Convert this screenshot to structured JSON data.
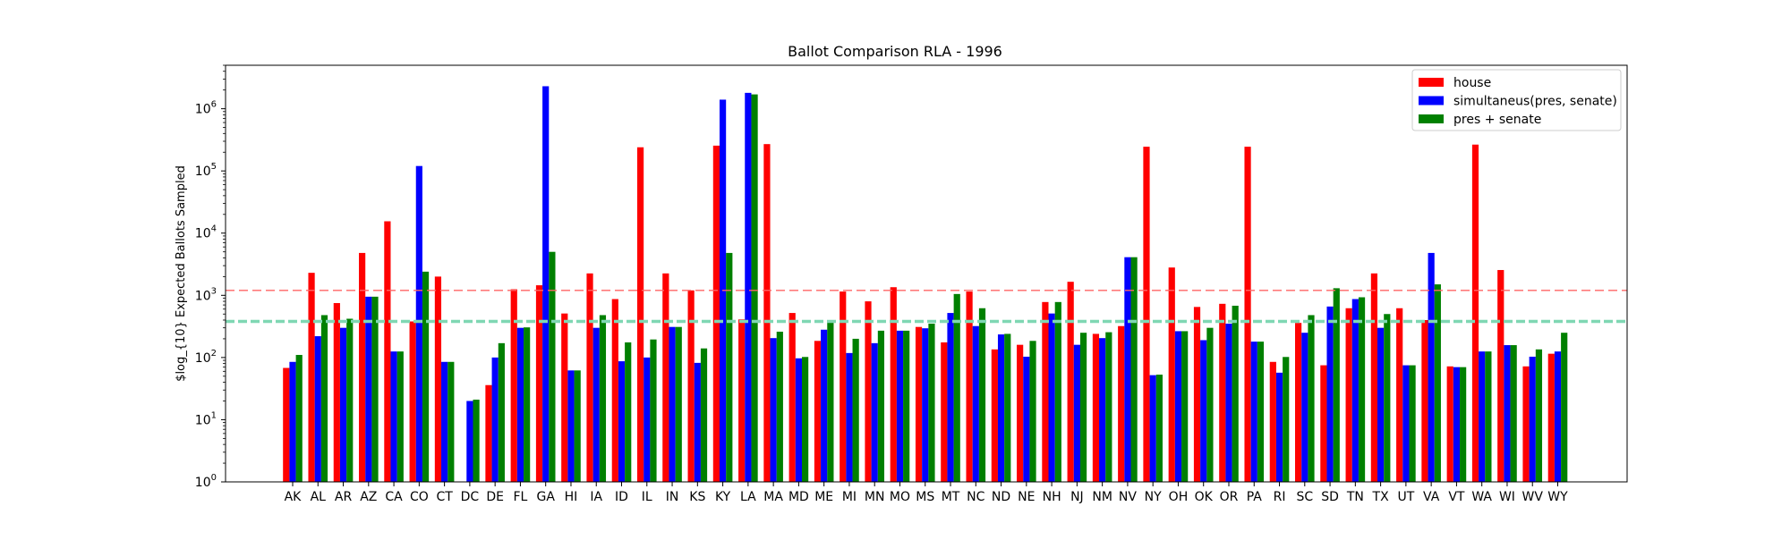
{
  "chart_data": {
    "type": "bar",
    "title": "Ballot Comparison RLA - 1996",
    "xlabel": "",
    "ylabel": "$log_{10} Expected Ballots Sampled",
    "y_scale": "log",
    "ylim": [
      1,
      5000000
    ],
    "y_ticks": [
      {
        "value": 1,
        "base": "10",
        "exp": "0"
      },
      {
        "value": 10,
        "base": "10",
        "exp": "1"
      },
      {
        "value": 100,
        "base": "10",
        "exp": "2"
      },
      {
        "value": 1000,
        "base": "10",
        "exp": "3"
      },
      {
        "value": 10000,
        "base": "10",
        "exp": "4"
      },
      {
        "value": 100000,
        "base": "10",
        "exp": "5"
      },
      {
        "value": 1000000,
        "base": "10",
        "exp": "6"
      }
    ],
    "legend_position": "top-right",
    "grid": false,
    "categories": [
      "AK",
      "AL",
      "AR",
      "AZ",
      "CA",
      "CO",
      "CT",
      "DC",
      "DE",
      "FL",
      "GA",
      "HI",
      "IA",
      "ID",
      "IL",
      "IN",
      "KS",
      "KY",
      "LA",
      "MA",
      "MD",
      "ME",
      "MI",
      "MN",
      "MO",
      "MS",
      "MT",
      "NC",
      "ND",
      "NE",
      "NH",
      "NJ",
      "NM",
      "NV",
      "NY",
      "OH",
      "OK",
      "OR",
      "PA",
      "RI",
      "SC",
      "SD",
      "TN",
      "TX",
      "UT",
      "VA",
      "VT",
      "WA",
      "WI",
      "WV",
      "WY"
    ],
    "series": [
      {
        "name": "house",
        "color": "#ff0000",
        "values": [
          68,
          2300,
          750,
          4800,
          15500,
          380,
          2000,
          null,
          36,
          1250,
          1450,
          510,
          2250,
          870,
          240000,
          2250,
          1200,
          255000,
          410,
          270000,
          520,
          185,
          1150,
          800,
          1350,
          310,
          175,
          1150,
          135,
          160,
          780,
          1650,
          240,
          320,
          245000,
          2800,
          650,
          730,
          245000,
          85,
          360,
          75,
          620,
          2250,
          620,
          400,
          72,
          265000,
          2550,
          72,
          115
        ]
      },
      {
        "name": "simultaneus(pres, senate)",
        "color": "#0000ff",
        "values": [
          85,
          220,
          300,
          950,
          125,
          120000,
          85,
          20,
          100,
          300,
          2300000,
          62,
          300,
          87,
          100,
          310,
          82,
          1400000,
          1800000,
          205,
          97,
          280,
          118,
          170,
          270,
          295,
          520,
          320,
          235,
          103,
          510,
          160,
          205,
          4100,
          52,
          265,
          190,
          350,
          180,
          57,
          250,
          660,
          870,
          300,
          75,
          4800,
          70,
          125,
          158,
          103,
          125
        ]
      },
      {
        "name": "pres + senate",
        "color": "#008000",
        "values": [
          110,
          480,
          420,
          950,
          125,
          2400,
          85,
          21,
          170,
          305,
          5000,
          62,
          480,
          175,
          195,
          310,
          140,
          4800,
          1700000,
          260,
          102,
          390,
          200,
          270,
          270,
          350,
          1050,
          620,
          240,
          185,
          780,
          250,
          255,
          4100,
          53,
          265,
          300,
          680,
          180,
          102,
          480,
          1300,
          930,
          500,
          75,
          1500,
          70,
          125,
          158,
          135,
          250
        ]
      }
    ],
    "reference_lines": [
      {
        "value": 1200,
        "color": "#ff6666",
        "style": "dashed"
      },
      {
        "value": 380,
        "color": "#7fd7b3",
        "style": "dashed"
      }
    ]
  }
}
